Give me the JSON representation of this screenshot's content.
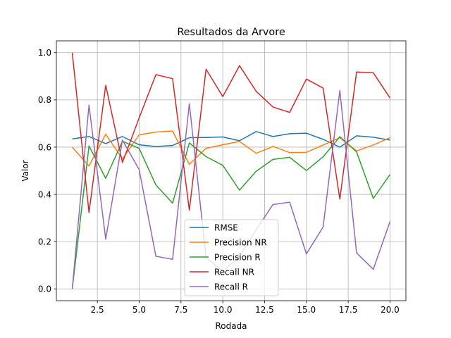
{
  "chart_data": {
    "type": "line",
    "title": "Resultados da Arvore",
    "xlabel": "Rodada",
    "ylabel": "Valor",
    "xlim": [
      0.05,
      20.95
    ],
    "ylim": [
      -0.05,
      1.05
    ],
    "xticks": [
      2.5,
      5.0,
      7.5,
      10.0,
      12.5,
      15.0,
      17.5,
      20.0
    ],
    "xtick_labels": [
      "2.5",
      "5.0",
      "7.5",
      "10.0",
      "12.5",
      "15.0",
      "17.5",
      "20.0"
    ],
    "yticks": [
      0.0,
      0.2,
      0.4,
      0.6,
      0.8,
      1.0
    ],
    "ytick_labels": [
      "0.0",
      "0.2",
      "0.4",
      "0.6",
      "0.8",
      "1.0"
    ],
    "grid": true,
    "legend_position": "lower-center",
    "x": [
      1,
      2,
      3,
      4,
      5,
      6,
      7,
      8,
      9,
      10,
      11,
      12,
      13,
      14,
      15,
      16,
      17,
      18,
      19,
      20
    ],
    "series": [
      {
        "name": "RMSE",
        "color": "#1f77b4",
        "values": [
          0.635,
          0.645,
          0.615,
          0.645,
          0.61,
          0.603,
          0.607,
          0.64,
          0.641,
          0.643,
          0.627,
          0.666,
          0.645,
          0.657,
          0.659,
          0.633,
          0.6,
          0.648,
          0.642,
          0.63
        ]
      },
      {
        "name": "Precision NR",
        "color": "#ff7f0e",
        "values": [
          0.6,
          0.52,
          0.655,
          0.55,
          0.652,
          0.664,
          0.668,
          0.527,
          0.595,
          0.61,
          0.624,
          0.574,
          0.603,
          0.577,
          0.578,
          0.609,
          0.64,
          0.584,
          0.609,
          0.64
        ]
      },
      {
        "name": "Precision R",
        "color": "#2ca02c",
        "values": [
          0.0,
          0.605,
          0.468,
          0.625,
          0.595,
          0.44,
          0.363,
          0.618,
          0.56,
          0.523,
          0.418,
          0.498,
          0.548,
          0.557,
          0.501,
          0.559,
          0.644,
          0.58,
          0.383,
          0.484
        ]
      },
      {
        "name": "Recall NR",
        "color": "#d62728",
        "values": [
          1.0,
          0.323,
          0.862,
          0.535,
          0.724,
          0.907,
          0.89,
          0.333,
          0.93,
          0.814,
          0.945,
          0.836,
          0.77,
          0.747,
          0.888,
          0.85,
          0.38,
          0.918,
          0.915,
          0.808
        ]
      },
      {
        "name": "Recall R",
        "color": "#9467bd",
        "values": [
          0.0,
          0.778,
          0.21,
          0.63,
          0.505,
          0.138,
          0.125,
          0.784,
          0.133,
          0.075,
          0.138,
          0.25,
          0.357,
          0.367,
          0.148,
          0.262,
          0.84,
          0.152,
          0.083,
          0.285
        ]
      }
    ]
  }
}
